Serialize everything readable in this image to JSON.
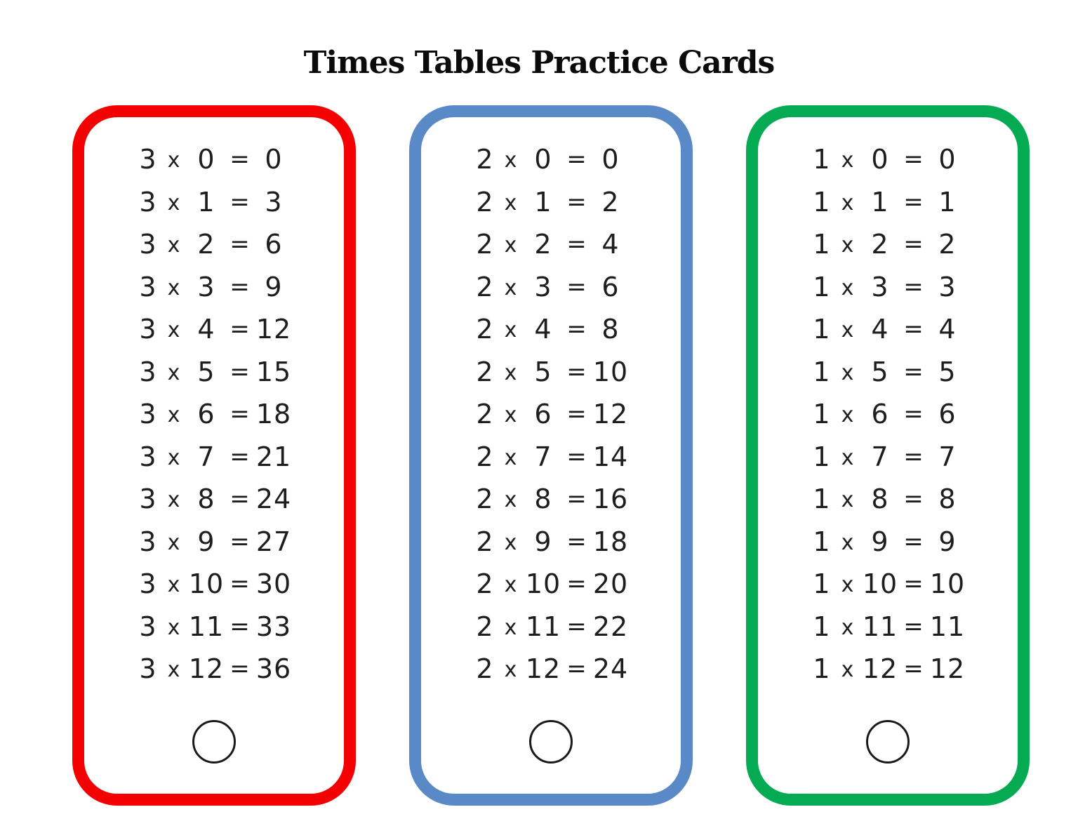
{
  "page": {
    "title": "Times Tables Practice Cards",
    "background_color": "#ffffff",
    "text_color": "#1e1e1e"
  },
  "cards": [
    {
      "id": "times-table-card-3s",
      "border_color": "#f40000",
      "rows": [
        {
          "a": "3",
          "op": "x",
          "b": "0",
          "eq": "=",
          "r": "0"
        },
        {
          "a": "3",
          "op": "x",
          "b": "1",
          "eq": "=",
          "r": "3"
        },
        {
          "a": "3",
          "op": "x",
          "b": "2",
          "eq": "=",
          "r": "6"
        },
        {
          "a": "3",
          "op": "x",
          "b": "3",
          "eq": "=",
          "r": "9"
        },
        {
          "a": "3",
          "op": "x",
          "b": "4",
          "eq": "=",
          "r": "12"
        },
        {
          "a": "3",
          "op": "x",
          "b": "5",
          "eq": "=",
          "r": "15"
        },
        {
          "a": "3",
          "op": "x",
          "b": "6",
          "eq": "=",
          "r": "18"
        },
        {
          "a": "3",
          "op": "x",
          "b": "7",
          "eq": "=",
          "r": "21"
        },
        {
          "a": "3",
          "op": "x",
          "b": "8",
          "eq": "=",
          "r": "24"
        },
        {
          "a": "3",
          "op": "x",
          "b": "9",
          "eq": "=",
          "r": "27"
        },
        {
          "a": "3",
          "op": "x",
          "b": "10",
          "eq": "=",
          "r": "30"
        },
        {
          "a": "3",
          "op": "x",
          "b": "11",
          "eq": "=",
          "r": "33"
        },
        {
          "a": "3",
          "op": "x",
          "b": "12",
          "eq": "=",
          "r": "36"
        }
      ]
    },
    {
      "id": "times-table-card-2s",
      "border_color": "#5a89c8",
      "rows": [
        {
          "a": "2",
          "op": "x",
          "b": "0",
          "eq": "=",
          "r": "0"
        },
        {
          "a": "2",
          "op": "x",
          "b": "1",
          "eq": "=",
          "r": "2"
        },
        {
          "a": "2",
          "op": "x",
          "b": "2",
          "eq": "=",
          "r": "4"
        },
        {
          "a": "2",
          "op": "x",
          "b": "3",
          "eq": "=",
          "r": "6"
        },
        {
          "a": "2",
          "op": "x",
          "b": "4",
          "eq": "=",
          "r": "8"
        },
        {
          "a": "2",
          "op": "x",
          "b": "5",
          "eq": "=",
          "r": "10"
        },
        {
          "a": "2",
          "op": "x",
          "b": "6",
          "eq": "=",
          "r": "12"
        },
        {
          "a": "2",
          "op": "x",
          "b": "7",
          "eq": "=",
          "r": "14"
        },
        {
          "a": "2",
          "op": "x",
          "b": "8",
          "eq": "=",
          "r": "16"
        },
        {
          "a": "2",
          "op": "x",
          "b": "9",
          "eq": "=",
          "r": "18"
        },
        {
          "a": "2",
          "op": "x",
          "b": "10",
          "eq": "=",
          "r": "20"
        },
        {
          "a": "2",
          "op": "x",
          "b": "11",
          "eq": "=",
          "r": "22"
        },
        {
          "a": "2",
          "op": "x",
          "b": "12",
          "eq": "=",
          "r": "24"
        }
      ]
    },
    {
      "id": "times-table-card-1s",
      "border_color": "#04ab53",
      "rows": [
        {
          "a": "1",
          "op": "x",
          "b": "0",
          "eq": "=",
          "r": "0"
        },
        {
          "a": "1",
          "op": "x",
          "b": "1",
          "eq": "=",
          "r": "1"
        },
        {
          "a": "1",
          "op": "x",
          "b": "2",
          "eq": "=",
          "r": "2"
        },
        {
          "a": "1",
          "op": "x",
          "b": "3",
          "eq": "=",
          "r": "3"
        },
        {
          "a": "1",
          "op": "x",
          "b": "4",
          "eq": "=",
          "r": "4"
        },
        {
          "a": "1",
          "op": "x",
          "b": "5",
          "eq": "=",
          "r": "5"
        },
        {
          "a": "1",
          "op": "x",
          "b": "6",
          "eq": "=",
          "r": "6"
        },
        {
          "a": "1",
          "op": "x",
          "b": "7",
          "eq": "=",
          "r": "7"
        },
        {
          "a": "1",
          "op": "x",
          "b": "8",
          "eq": "=",
          "r": "8"
        },
        {
          "a": "1",
          "op": "x",
          "b": "9",
          "eq": "=",
          "r": "9"
        },
        {
          "a": "1",
          "op": "x",
          "b": "10",
          "eq": "=",
          "r": "10"
        },
        {
          "a": "1",
          "op": "x",
          "b": "11",
          "eq": "=",
          "r": "11"
        },
        {
          "a": "1",
          "op": "x",
          "b": "12",
          "eq": "=",
          "r": "12"
        }
      ]
    }
  ]
}
